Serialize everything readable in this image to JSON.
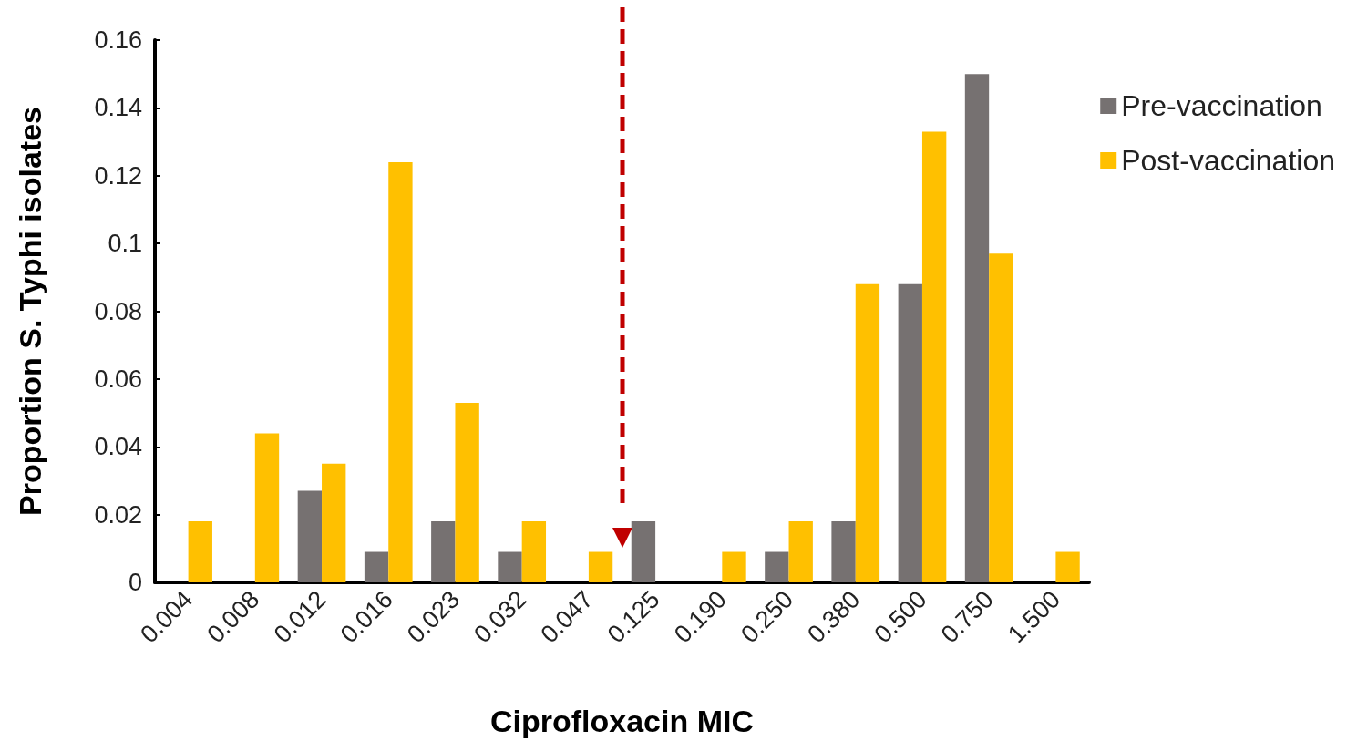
{
  "chart_data": {
    "type": "bar",
    "xlabel": "Ciprofloxacin MIC",
    "ylabel": "Proportion S. Typhi isolates",
    "categories": [
      "0.004",
      "0.008",
      "0.012",
      "0.016",
      "0.023",
      "0.032",
      "0.047",
      "0.125",
      "0.190",
      "0.250",
      "0.380",
      "0.500",
      "0.750",
      "1.500"
    ],
    "series": [
      {
        "name": "Pre-vaccination",
        "color": "#767171",
        "values": [
          0,
          0,
          0.027,
          0.009,
          0.018,
          0.009,
          0,
          0.018,
          0,
          0.009,
          0.018,
          0.088,
          0.15,
          0
        ]
      },
      {
        "name": "Post-vaccination",
        "color": "#ffc000",
        "values": [
          0.018,
          0.044,
          0.035,
          0.124,
          0.053,
          0.018,
          0.009,
          0,
          0.009,
          0.018,
          0.088,
          0.133,
          0.097,
          0.009
        ]
      }
    ],
    "ylim": [
      0,
      0.16
    ],
    "yticks": [
      0,
      0.02,
      0.04,
      0.06,
      0.08,
      0.1,
      0.12,
      0.14,
      0.16
    ],
    "grid": false,
    "legend": "top right"
  }
}
